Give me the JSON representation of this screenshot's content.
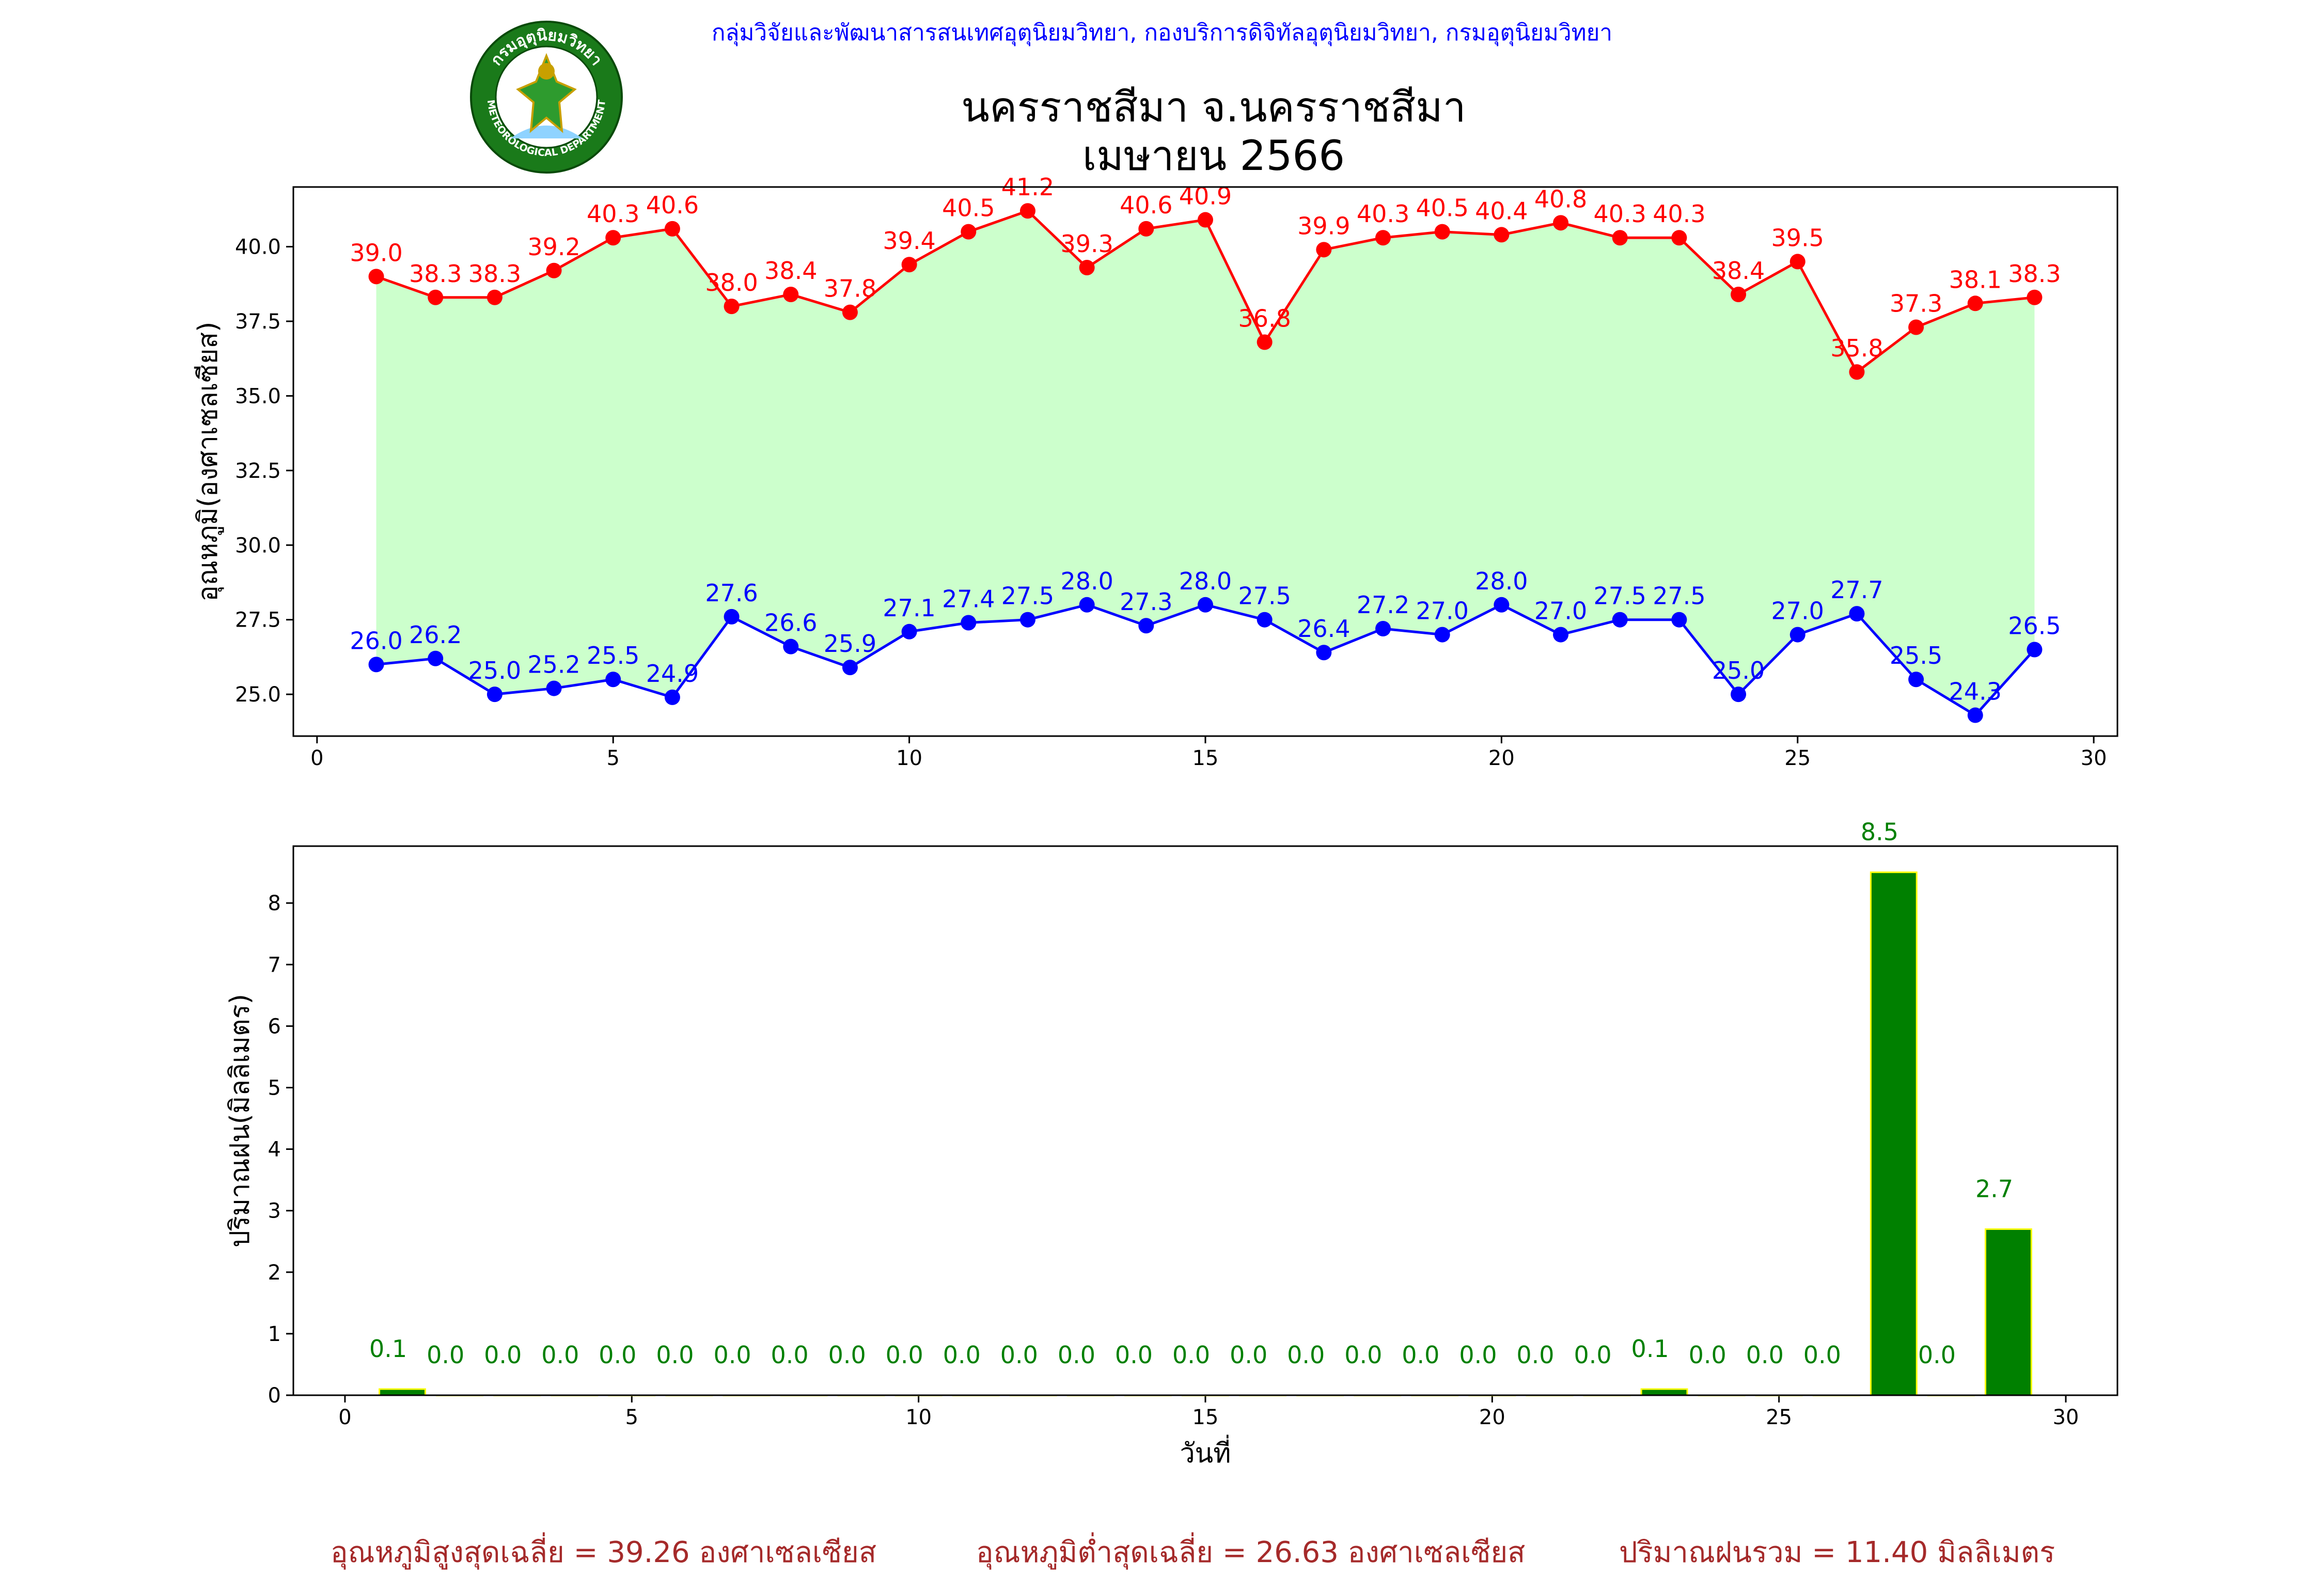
{
  "header": {
    "agency_text": "กลุ่มวิจัยและพัฒนาสารสนเทศอุตุนิยมวิทยา, กองบริการดิจิทัลอุตุนิยมวิทยา, กรมอุตุนิยมวิทยา",
    "logo_text_top": "กรมอุตุนิยมวิทยา",
    "logo_text_bottom": "METEOROLOGICAL DEPARTMENT"
  },
  "title": {
    "line1": "นครราชสีมา จ.นครราชสีมา",
    "line2": "เมษายน 2566"
  },
  "chart_data": [
    {
      "type": "line",
      "ylabel": "อุณหภูมิ(องศาเซลเซียส)",
      "xlabel": "",
      "xlim": [
        -0.4,
        30.4
      ],
      "ylim": [
        23.6,
        42.0
      ],
      "x_ticks": [
        0,
        5,
        10,
        15,
        20,
        25,
        30
      ],
      "y_ticks": [
        25.0,
        27.5,
        30.0,
        32.5,
        35.0,
        37.5,
        40.0
      ],
      "x": [
        1,
        2,
        3,
        4,
        5,
        6,
        7,
        8,
        9,
        10,
        11,
        12,
        13,
        14,
        15,
        16,
        17,
        18,
        19,
        20,
        21,
        22,
        23,
        24,
        25,
        26,
        27,
        28,
        29
      ],
      "fill_between": {
        "color": "#ccffcc"
      },
      "series": [
        {
          "color": "#ff0000",
          "values": [
            39.0,
            38.3,
            38.3,
            39.2,
            40.3,
            40.6,
            38.0,
            38.4,
            37.8,
            39.4,
            40.5,
            41.2,
            39.3,
            40.6,
            40.9,
            36.8,
            39.9,
            40.3,
            40.5,
            40.4,
            40.8,
            40.3,
            40.3,
            38.4,
            39.5,
            35.8,
            37.3,
            38.1,
            38.3
          ]
        },
        {
          "color": "#0000ff",
          "values": [
            26.0,
            26.2,
            25.0,
            25.2,
            25.5,
            24.9,
            27.6,
            26.6,
            25.9,
            27.1,
            27.4,
            27.5,
            28.0,
            27.3,
            28.0,
            27.5,
            26.4,
            27.2,
            27.0,
            28.0,
            27.0,
            27.5,
            27.5,
            25.0,
            27.0,
            27.7,
            25.5,
            24.3,
            26.5
          ]
        }
      ]
    },
    {
      "type": "bar",
      "ylabel": "ปริมาณฝน(มิลลิเมตร)",
      "xlabel": "วันที่",
      "xlim": [
        -0.9,
        30.9
      ],
      "ylim": [
        0,
        8.925
      ],
      "x_ticks": [
        0,
        5,
        10,
        15,
        20,
        25,
        30
      ],
      "y_ticks": [
        0,
        1,
        2,
        3,
        4,
        5,
        6,
        7,
        8
      ],
      "x": [
        1,
        2,
        3,
        4,
        5,
        6,
        7,
        8,
        9,
        10,
        11,
        12,
        13,
        14,
        15,
        16,
        17,
        18,
        19,
        20,
        21,
        22,
        23,
        24,
        25,
        26,
        27,
        28,
        29
      ],
      "bar_color": "#008000",
      "bar_edge_color": "#ffff00",
      "label_color": "#008000",
      "values": [
        0.1,
        0.0,
        0.0,
        0.0,
        0.0,
        0.0,
        0.0,
        0.0,
        0.0,
        0.0,
        0.0,
        0.0,
        0.0,
        0.0,
        0.0,
        0.0,
        0.0,
        0.0,
        0.0,
        0.0,
        0.0,
        0.0,
        0.1,
        0.0,
        0.0,
        0.0,
        8.5,
        0.0,
        2.7
      ]
    }
  ],
  "summary": {
    "max_avg": "อุณหภูมิสูงสุดเฉลี่ย = 39.26 องศาเซลเซียส",
    "min_avg": "อุณหภูมิต่ำสุดเฉลี่ย = 26.63 องศาเซลเซียส",
    "rain_total": "ปริมาณฝนรวม = 11.40 มิลลิเมตร"
  }
}
